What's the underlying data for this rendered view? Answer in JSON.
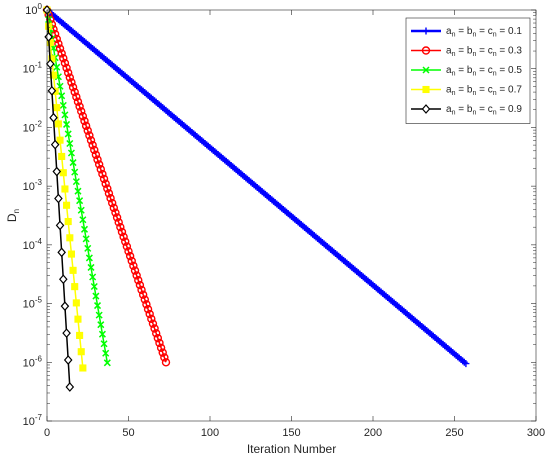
{
  "chart_data": {
    "type": "line",
    "title": "",
    "xlabel": "Iteration Number",
    "ylabel_main": "D",
    "ylabel_sub": "n",
    "xlim": [
      0,
      300
    ],
    "ylim": [
      1e-07,
      1
    ],
    "yscale": "log",
    "grid": false,
    "legend_position": "top-right",
    "x_ticks": [
      {
        "value": 0,
        "label": "0"
      },
      {
        "value": 50,
        "label": "50"
      },
      {
        "value": 100,
        "label": "100"
      },
      {
        "value": 150,
        "label": "150"
      },
      {
        "value": 200,
        "label": "200"
      },
      {
        "value": 250,
        "label": "250"
      },
      {
        "value": 300,
        "label": "300"
      }
    ],
    "y_ticks": [
      {
        "value": 1,
        "base": "10",
        "exp": "0"
      },
      {
        "value": 0.1,
        "base": "10",
        "exp": "-1"
      },
      {
        "value": 0.01,
        "base": "10",
        "exp": "-2"
      },
      {
        "value": 0.001,
        "base": "10",
        "exp": "-3"
      },
      {
        "value": 0.0001,
        "base": "10",
        "exp": "-4"
      },
      {
        "value": 1e-05,
        "base": "10",
        "exp": "-5"
      },
      {
        "value": 1e-06,
        "base": "10",
        "exp": "-6"
      },
      {
        "value": 1e-07,
        "base": "10",
        "exp": "-7"
      }
    ],
    "series": [
      {
        "name": "a = b = c = 0.1",
        "legend_label": {
          "a": "a",
          "b": "b",
          "c": "c",
          "sub": "n",
          "eq": " = ",
          "value": "0.1"
        },
        "color": "#0000ff",
        "marker": "plus",
        "x_end": 257,
        "y_start": 1,
        "y_end": 9.5e-07
      },
      {
        "name": "a = b = c = 0.3",
        "legend_label": {
          "a": "a",
          "b": "b",
          "c": "c",
          "sub": "n",
          "eq": " = ",
          "value": "0.3"
        },
        "color": "#ff0000",
        "marker": "circle",
        "x_end": 73,
        "y_start": 1,
        "y_end": 1e-06
      },
      {
        "name": "a = b = c = 0.5",
        "legend_label": {
          "a": "a",
          "b": "b",
          "c": "c",
          "sub": "n",
          "eq": " = ",
          "value": "0.5"
        },
        "color": "#00ff00",
        "marker": "x",
        "x_end": 37,
        "y_start": 1,
        "y_end": 9.8e-07
      },
      {
        "name": "a = b = c = 0.7",
        "legend_label": {
          "a": "a",
          "b": "b",
          "c": "c",
          "sub": "n",
          "eq": " = ",
          "value": "0.7"
        },
        "color": "#ffff00",
        "marker": "square",
        "x_end": 22,
        "y_start": 1,
        "y_end": 8e-07
      },
      {
        "name": "a = b = c = 0.9",
        "legend_label": {
          "a": "a",
          "b": "b",
          "c": "c",
          "sub": "n",
          "eq": " = ",
          "value": "0.9"
        },
        "color": "#000000",
        "marker": "diamond",
        "x_end": 14,
        "y_start": 1,
        "y_end": 3.8e-07
      }
    ]
  }
}
